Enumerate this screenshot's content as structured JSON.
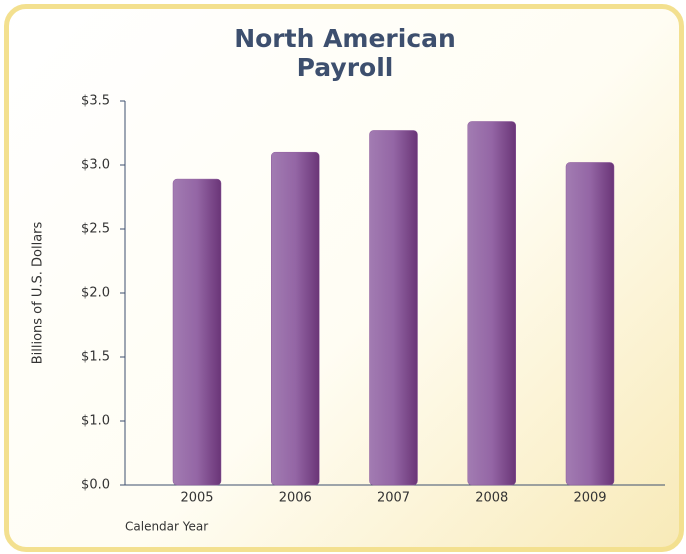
{
  "chart_data": {
    "type": "bar",
    "title": "North American Payroll",
    "y_label": "Billions of U.S. Dollars",
    "x_label": "Calendar Year",
    "categories": [
      "2005",
      "2006",
      "2007",
      "2008",
      "2009"
    ],
    "values": [
      2.89,
      3.1,
      3.27,
      3.34,
      3.02
    ],
    "color": "#8d5a9c",
    "ylim": [
      0,
      3.5
    ],
    "yticks": [
      {
        "value": 0,
        "label": "$0.0"
      },
      {
        "value": 1,
        "label": "$1.0"
      },
      {
        "value": 1.5,
        "label": "$1.5"
      },
      {
        "value": 2,
        "label": "$2.0"
      },
      {
        "value": 2.5,
        "label": "$2.5"
      },
      {
        "value": 3,
        "label": "$3.0"
      },
      {
        "value": 3.5,
        "label": "$3.5"
      }
    ],
    "axis_break": true,
    "grid": false
  }
}
